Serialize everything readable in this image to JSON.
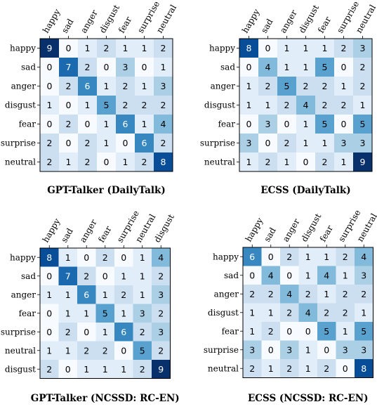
{
  "chart_data": [
    {
      "type": "heatmap",
      "title": "GPT-Talker (DailyTalk)",
      "x_labels": [
        "happy",
        "sad",
        "anger",
        "disgust",
        "fear",
        "surprise",
        "neutral"
      ],
      "y_labels": [
        "happy",
        "sad",
        "anger",
        "disgust",
        "fear",
        "surprise",
        "neutral"
      ],
      "matrix": [
        [
          9,
          0,
          1,
          2,
          1,
          1,
          2
        ],
        [
          0,
          7,
          2,
          0,
          3,
          0,
          1
        ],
        [
          0,
          2,
          6,
          1,
          2,
          1,
          3
        ],
        [
          1,
          0,
          1,
          5,
          2,
          2,
          2
        ],
        [
          0,
          2,
          0,
          1,
          6,
          1,
          4
        ],
        [
          2,
          0,
          2,
          1,
          0,
          6,
          2
        ],
        [
          2,
          1,
          2,
          0,
          1,
          2,
          8
        ]
      ],
      "colormap": "Blues",
      "vmin": 0,
      "vmax": 9
    },
    {
      "type": "heatmap",
      "title": "ECSS (DailyTalk)",
      "x_labels": [
        "happy",
        "sad",
        "anger",
        "disgust",
        "fear",
        "surprise",
        "neutral"
      ],
      "y_labels": [
        "happy",
        "sad",
        "anger",
        "disgust",
        "fear",
        "surprise",
        "neutral"
      ],
      "matrix": [
        [
          8,
          0,
          1,
          1,
          1,
          2,
          3
        ],
        [
          0,
          4,
          1,
          1,
          5,
          0,
          2
        ],
        [
          1,
          2,
          5,
          2,
          2,
          1,
          2
        ],
        [
          1,
          1,
          2,
          4,
          2,
          2,
          1
        ],
        [
          0,
          3,
          0,
          1,
          5,
          0,
          5
        ],
        [
          3,
          0,
          2,
          1,
          1,
          3,
          3
        ],
        [
          1,
          2,
          1,
          0,
          2,
          1,
          9
        ]
      ],
      "colormap": "Blues",
      "vmin": 0,
      "vmax": 9
    },
    {
      "type": "heatmap",
      "title": "GPT-Talker (NCSSD: RC-EN)",
      "x_labels": [
        "happy",
        "sad",
        "anger",
        "fear",
        "surprise",
        "neutral",
        "disgust"
      ],
      "y_labels": [
        "happy",
        "sad",
        "anger",
        "fear",
        "surprise",
        "neutral",
        "disgust"
      ],
      "matrix": [
        [
          8,
          1,
          0,
          2,
          0,
          1,
          4
        ],
        [
          0,
          7,
          2,
          0,
          1,
          1,
          2
        ],
        [
          1,
          1,
          6,
          1,
          2,
          1,
          3
        ],
        [
          0,
          1,
          1,
          5,
          1,
          3,
          2
        ],
        [
          0,
          2,
          0,
          1,
          6,
          2,
          3
        ],
        [
          1,
          1,
          2,
          2,
          0,
          5,
          2
        ],
        [
          2,
          0,
          1,
          1,
          1,
          2,
          9
        ]
      ],
      "colormap": "Blues",
      "vmin": 0,
      "vmax": 9
    },
    {
      "type": "heatmap",
      "title": "ECSS (NCSSD: RC-EN)",
      "x_labels": [
        "happy",
        "sad",
        "anger",
        "disgust",
        "fear",
        "surprise",
        "neutral"
      ],
      "y_labels": [
        "happy",
        "sad",
        "anger",
        "disgust",
        "fear",
        "surprise",
        "neutral"
      ],
      "matrix": [
        [
          6,
          0,
          2,
          1,
          1,
          2,
          4
        ],
        [
          0,
          4,
          0,
          1,
          4,
          1,
          3
        ],
        [
          2,
          2,
          4,
          2,
          1,
          2,
          2
        ],
        [
          1,
          1,
          2,
          4,
          2,
          2,
          1
        ],
        [
          1,
          2,
          0,
          0,
          5,
          1,
          5
        ],
        [
          3,
          0,
          3,
          1,
          0,
          3,
          3
        ],
        [
          2,
          1,
          2,
          1,
          2,
          0,
          8
        ]
      ],
      "colormap": "Blues",
      "vmin": 0,
      "vmax": 9
    }
  ]
}
